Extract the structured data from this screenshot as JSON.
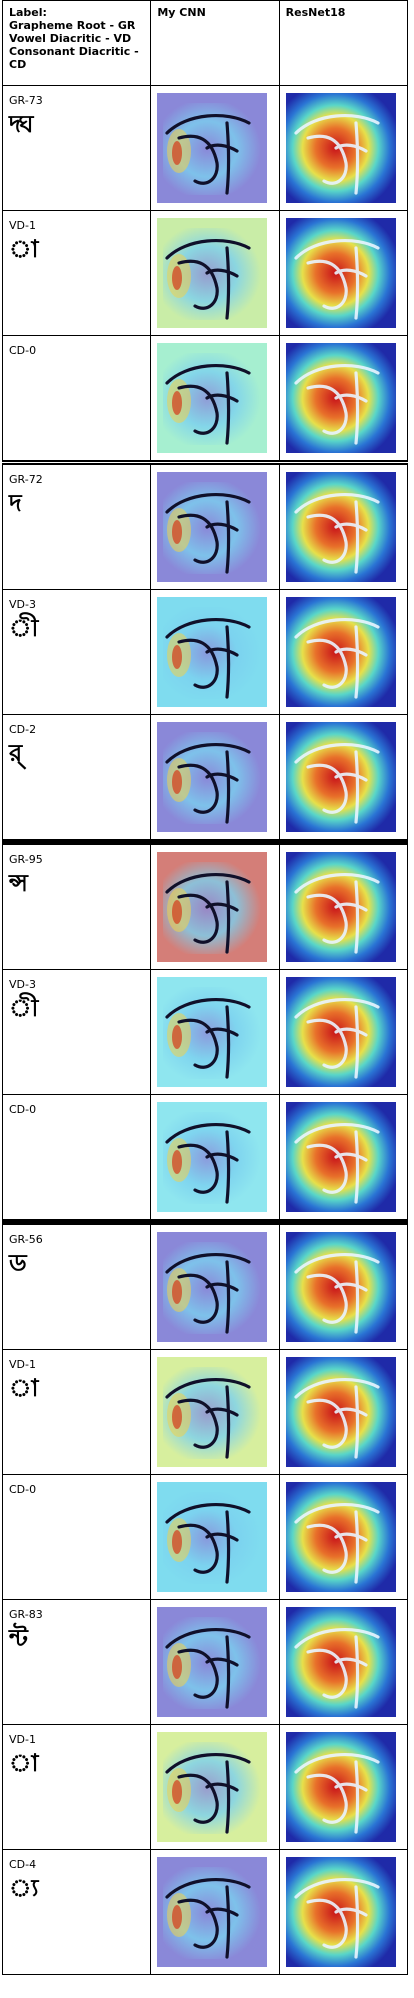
{
  "header": {
    "label_col": "Label:\nGrapheme Root - GR\nVowel Diacritic - VD\nConsonant Diacritic - CD",
    "col2": "My CNN",
    "col3": "ResNet18"
  },
  "rows": [
    {
      "code": "GR-73",
      "glyph": "দ্ঘ"
    },
    {
      "code": "VD-1",
      "glyph": "া"
    },
    {
      "code": "CD-0",
      "glyph": ""
    },
    {
      "code": "GR-72",
      "glyph": "দ"
    },
    {
      "code": "VD-3",
      "glyph": "ী"
    },
    {
      "code": "CD-2",
      "glyph": "র্"
    },
    {
      "code": "GR-95",
      "glyph": "ন্স"
    },
    {
      "code": "VD-3",
      "glyph": "ী"
    },
    {
      "code": "CD-0",
      "glyph": ""
    },
    {
      "code": "GR-56",
      "glyph": "ড"
    },
    {
      "code": "VD-1",
      "glyph": "া"
    },
    {
      "code": "CD-0",
      "glyph": ""
    },
    {
      "code": "GR-83",
      "glyph": "ন্ট"
    },
    {
      "code": "VD-1",
      "glyph": "া"
    },
    {
      "code": "CD-4",
      "glyph": "্য"
    }
  ],
  "colors": {
    "cnn_base": "#7f7fd6",
    "cnn_alt": "#c7ef9e",
    "res_base": "#1f2aa8",
    "res_hot": "#d43a1a",
    "ink": "#10102a"
  }
}
